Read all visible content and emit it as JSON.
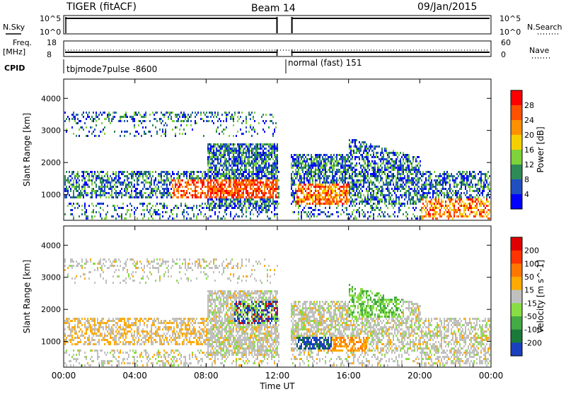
{
  "header": {
    "radar": "TIGER (fitACF)",
    "beam": "Beam 14",
    "date": "09/Jan/2015"
  },
  "panels": {
    "nsky_label": "N.Sky",
    "nsearch_label": "N.Search",
    "nsky_ticks": [
      "10^5",
      "10^0"
    ],
    "nsearch_ticks": [
      "10^5",
      "10^0"
    ],
    "freq_label": "Freq.",
    "freq_unit": "[MHz]",
    "freq_ticks": [
      "18",
      "8"
    ],
    "nave_label": "Nave",
    "nave_ticks": [
      "60",
      "0"
    ],
    "cpid_label": "CPID",
    "cpid_1": "tbjmode7pulse -8600",
    "cpid_2": "normal (fast) 151"
  },
  "chart_data": [
    {
      "type": "heatmap",
      "panel": "power",
      "ylabel": "Slant Range [km]",
      "xlabel": "Time UT",
      "x_ticks": [
        "00:00",
        "04:00",
        "08:00",
        "12:00",
        "16:00",
        "20:00",
        "00:00"
      ],
      "xlim_hours": [
        0,
        24
      ],
      "y_ticks": [
        1000,
        2000,
        3000,
        4000
      ],
      "ylim": [
        200,
        4600
      ],
      "colorbar_label": "Power [dB]",
      "colorbar_ticks": [
        "28",
        "24",
        "20",
        "16",
        "12",
        "8",
        "4"
      ],
      "colors": [
        "#0000ff",
        "#2050c0",
        "#2e8b57",
        "#7fd23a",
        "#f5d000",
        "#ff9000",
        "#ff5000",
        "#ff0000"
      ],
      "gap_hours": [
        12.1,
        12.7
      ]
    },
    {
      "type": "heatmap",
      "panel": "velocity",
      "ylabel": "Slant Range [km]",
      "xlabel": "Time UT",
      "x_ticks": [
        "00:00",
        "04:00",
        "08:00",
        "12:00",
        "16:00",
        "20:00",
        "00:00"
      ],
      "xlim_hours": [
        0,
        24
      ],
      "y_ticks": [
        1000,
        2000,
        3000,
        4000
      ],
      "ylim": [
        200,
        4600
      ],
      "colorbar_label": "Velocity [m s^-1]",
      "colorbar_ticks": [
        "200",
        "100",
        "50",
        "15",
        "-15",
        "-50",
        "-100",
        "-200"
      ],
      "colors": [
        "#1a3fbf",
        "#1a7a3a",
        "#44aa44",
        "#88dd44",
        "#c0c0c0",
        "#ffaa00",
        "#ff7700",
        "#ff3300",
        "#e00000"
      ],
      "gap_hours": [
        12.1,
        12.7
      ]
    }
  ]
}
